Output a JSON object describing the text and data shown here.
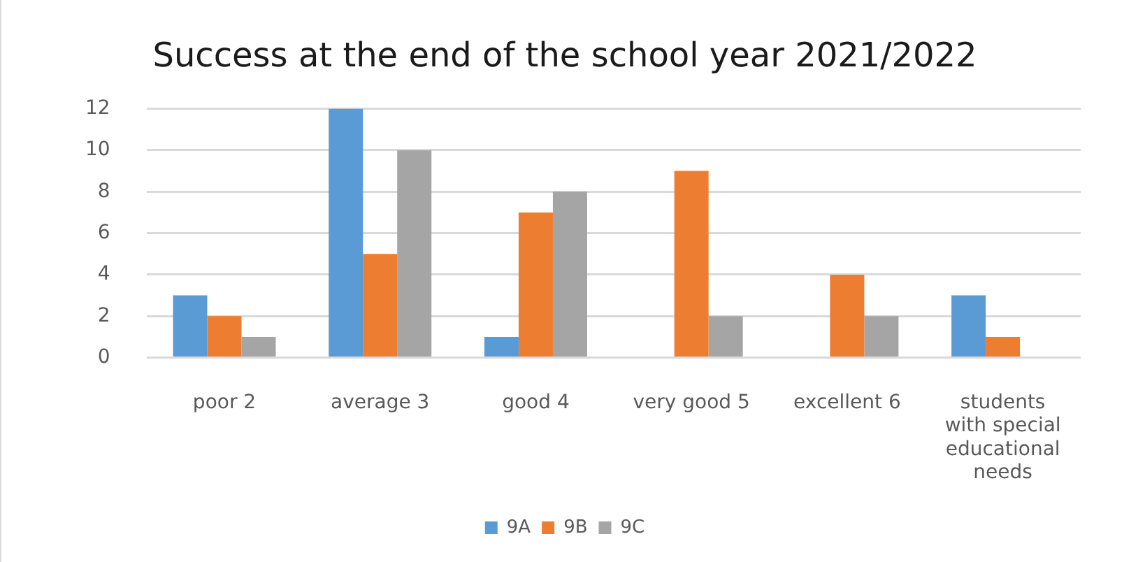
{
  "chart_data": {
    "type": "bar",
    "title": "Success at the end of the school year 2021/2022",
    "categories": [
      "poor 2",
      "average 3",
      "good 4",
      "very good 5",
      "excellent 6",
      "students with special educational needs"
    ],
    "series": [
      {
        "name": "9A",
        "color": "#5b9bd5",
        "values": [
          3,
          12,
          1,
          0,
          0,
          3
        ]
      },
      {
        "name": "9B",
        "color": "#ed7d31",
        "values": [
          2,
          5,
          7,
          9,
          4,
          1
        ]
      },
      {
        "name": "9C",
        "color": "#a5a5a5",
        "values": [
          1,
          10,
          8,
          2,
          2,
          0
        ]
      }
    ],
    "ylim": [
      0,
      12
    ],
    "yticks": [
      0,
      2,
      4,
      6,
      8,
      10,
      12
    ],
    "grid": "y",
    "legend": "bottom"
  }
}
